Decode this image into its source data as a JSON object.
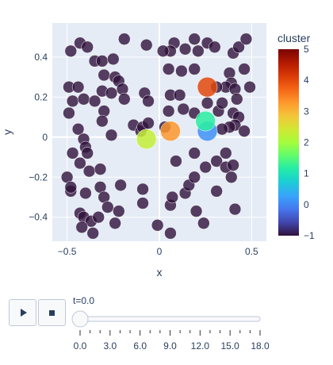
{
  "chart_data": {
    "type": "scatter",
    "title": "",
    "xlabel": "x",
    "ylabel": "y",
    "xlim": [
      -0.58,
      0.58
    ],
    "ylim": [
      -0.52,
      0.57
    ],
    "x_ticks": [
      "−0.5",
      "0",
      "0.5"
    ],
    "x_tick_values": [
      -0.5,
      0,
      0.5
    ],
    "y_ticks": [
      "−0.4",
      "−0.2",
      "0",
      "0.2",
      "0.4"
    ],
    "y_tick_values": [
      -0.4,
      -0.2,
      0,
      0.2,
      0.4
    ],
    "grid": true,
    "colorbar": {
      "title": "cluster",
      "range": [
        -1,
        5
      ],
      "tick_values": [
        -1,
        0,
        1,
        2,
        3,
        4,
        5
      ],
      "tick_labels": [
        "−1",
        "0",
        "1",
        "2",
        "3",
        "4",
        "5"
      ]
    },
    "background_points_cluster": -1,
    "background_points": [
      [
        -0.48,
        0.43
      ],
      [
        -0.43,
        0.47
      ],
      [
        -0.39,
        0.45
      ],
      [
        -0.35,
        0.38
      ],
      [
        -0.31,
        0.38
      ],
      [
        -0.25,
        0.39
      ],
      [
        -0.19,
        0.49
      ],
      [
        -0.07,
        0.46
      ],
      [
        -0.3,
        0.31
      ],
      [
        -0.24,
        0.3
      ],
      [
        -0.22,
        0.28
      ],
      [
        -0.49,
        0.25
      ],
      [
        -0.44,
        0.25
      ],
      [
        -0.47,
        0.18
      ],
      [
        -0.49,
        0.12
      ],
      [
        -0.41,
        0.19
      ],
      [
        -0.31,
        0.23
      ],
      [
        -0.2,
        0.24
      ],
      [
        -0.26,
        0.22
      ],
      [
        -0.19,
        0.19
      ],
      [
        -0.08,
        0.22
      ],
      [
        -0.06,
        0.18
      ],
      [
        -0.3,
        0.13
      ],
      [
        -0.31,
        0.08
      ],
      [
        -0.35,
        0.18
      ],
      [
        -0.44,
        0.04
      ],
      [
        -0.41,
        -0.01
      ],
      [
        -0.4,
        -0.05
      ],
      [
        -0.39,
        -0.08
      ],
      [
        -0.26,
        0.01
      ],
      [
        -0.14,
        0.06
      ],
      [
        -0.1,
        0.03
      ],
      [
        -0.09,
        0.05
      ],
      [
        -0.06,
        0.07
      ],
      [
        -0.47,
        -0.08
      ],
      [
        -0.38,
        -0.17
      ],
      [
        -0.43,
        -0.13
      ],
      [
        -0.32,
        -0.16
      ],
      [
        -0.5,
        -0.2
      ],
      [
        -0.48,
        -0.27
      ],
      [
        -0.48,
        -0.25
      ],
      [
        -0.4,
        -0.28
      ],
      [
        -0.32,
        -0.25
      ],
      [
        -0.3,
        -0.3
      ],
      [
        -0.28,
        -0.35
      ],
      [
        -0.21,
        -0.24
      ],
      [
        -0.43,
        -0.38
      ],
      [
        -0.41,
        -0.4
      ],
      [
        -0.37,
        -0.42
      ],
      [
        -0.33,
        -0.4
      ],
      [
        -0.42,
        -0.45
      ],
      [
        -0.36,
        -0.48
      ],
      [
        -0.22,
        -0.37
      ],
      [
        -0.24,
        -0.43
      ],
      [
        -0.09,
        -0.26
      ],
      [
        -0.09,
        -0.33
      ],
      [
        -0.01,
        -0.44
      ],
      [
        0.06,
        -0.48
      ],
      [
        0.06,
        -0.34
      ],
      [
        0.07,
        -0.3
      ],
      [
        0.09,
        -0.12
      ],
      [
        0.14,
        -0.28
      ],
      [
        0.16,
        -0.24
      ],
      [
        0.19,
        -0.2
      ],
      [
        0.2,
        -0.37
      ],
      [
        0.24,
        -0.43
      ],
      [
        0.25,
        -0.15
      ],
      [
        0.31,
        -0.27
      ],
      [
        0.19,
        -0.08
      ],
      [
        0.31,
        -0.12
      ],
      [
        0.36,
        -0.15
      ],
      [
        0.4,
        -0.14
      ],
      [
        0.39,
        -0.2
      ],
      [
        0.41,
        -0.36
      ],
      [
        0.36,
        -0.08
      ],
      [
        0.06,
        0.21
      ],
      [
        0.05,
        0.34
      ],
      [
        0.08,
        0.47
      ],
      [
        0.06,
        0.43
      ],
      [
        0.02,
        0.43
      ],
      [
        0.12,
        0.33
      ],
      [
        0.19,
        0.34
      ],
      [
        0.21,
        0.43
      ],
      [
        0.14,
        0.44
      ],
      [
        0.19,
        0.49
      ],
      [
        0.26,
        0.47
      ],
      [
        0.3,
        0.45
      ],
      [
        0.4,
        0.42
      ],
      [
        0.43,
        0.45
      ],
      [
        0.47,
        0.49
      ],
      [
        0.46,
        0.34
      ],
      [
        0.38,
        0.32
      ],
      [
        0.39,
        0.27
      ],
      [
        0.36,
        0.25
      ],
      [
        0.31,
        0.25
      ],
      [
        0.49,
        0.25
      ],
      [
        0.41,
        0.24
      ],
      [
        0.42,
        0.19
      ],
      [
        0.11,
        0.21
      ],
      [
        0.05,
        0.13
      ],
      [
        0.13,
        0.14
      ],
      [
        0.19,
        0.12
      ],
      [
        0.26,
        0.17
      ],
      [
        0.32,
        0.13
      ],
      [
        0.4,
        0.12
      ],
      [
        0.43,
        0.1
      ],
      [
        0.41,
        0.06
      ],
      [
        0.38,
        0.05
      ],
      [
        0.34,
        0.04
      ],
      [
        0.46,
        0.03
      ],
      [
        0.34,
        0.17
      ],
      [
        0.03,
        0.05
      ]
    ],
    "highlight_points": [
      {
        "x": -0.07,
        "y": -0.01,
        "cluster": 2.3
      },
      {
        "x": 0.06,
        "y": 0.03,
        "cluster": 3.3
      },
      {
        "x": 0.26,
        "y": 0.03,
        "cluster": 0.1
      },
      {
        "x": 0.25,
        "y": 0.08,
        "cluster": 1.2
      },
      {
        "x": 0.26,
        "y": 0.25,
        "cluster": 4.0
      }
    ]
  },
  "animation": {
    "play_icon": "play-icon",
    "stop_icon": "stop-icon",
    "current_label": "t=0.0",
    "slider_value": 0.0,
    "slider_ticks": [
      "0.0",
      "3.0",
      "6.0",
      "9.0",
      "12.0",
      "15.0",
      "18.0"
    ],
    "slider_tick_values": [
      0,
      3,
      6,
      9,
      12,
      15,
      18
    ],
    "minor_steps_per_major": 3
  }
}
